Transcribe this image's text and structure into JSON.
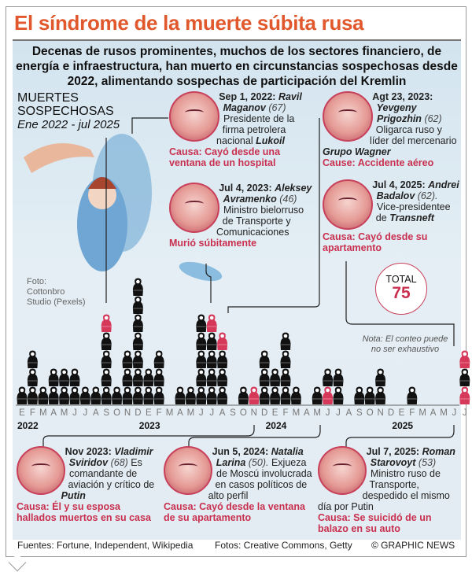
{
  "title": "El síndrome de la muerte súbita rusa",
  "intro": "Decenas de rusos prominentes, muchos de los sectores financiero, de energía e infraestructura, han muerto en circunstancias sospechosas desde 2022, alimentando sospechas de participación del Kremlin",
  "section_label": {
    "line1": "MUERTES",
    "line2": "SOSPECHOSAS",
    "range": "Ene 2022 - jul 2025"
  },
  "photo_credit": {
    "l1": "Foto:",
    "l2": "Cottonbro",
    "l3": "Studio (Pexels)"
  },
  "total": {
    "label": "TOTAL",
    "value": "75"
  },
  "note": {
    "l1": "Nota: El conteo puede",
    "l2": "no ser exhaustivo"
  },
  "profiles": [
    {
      "date": "Sep 1, 2022:",
      "name": "Ravil Maganov",
      "age": "(67)",
      "desc": "Presidente de la firma petrolera nacional",
      "org": "Lukoil",
      "cause": "Causa: Cayó desde una ventana de un hospital"
    },
    {
      "date": "Jul 4, 2023:",
      "name": "Aleksey Avramenko",
      "age": "(46)",
      "desc": "Ministro bielorruso de Transporte y Comunicaciones",
      "org": "",
      "cause": "Murió súbitamente"
    },
    {
      "date": "Agt 23, 2023:",
      "name": "Yevgeny Prigozhin",
      "age": "(62)",
      "desc": "Oligarca ruso y líder del mercenario",
      "org": "Grupo Wagner",
      "cause": "Cause: Accidente aéreo"
    },
    {
      "date": "Jul 4, 2025:",
      "name": "Andrei Badalov",
      "age": "(62).",
      "desc": "Vice-presidentee de",
      "org": "Transneft",
      "cause": "Causa: Cayó desde su apartamento"
    },
    {
      "date": "Nov 2023:",
      "name": "Vladimir Sviridov",
      "age": "(68)",
      "desc": "Es comandante de aviación y crítico de",
      "org": "Putin",
      "cause": "Causa: Él y su esposa hallados muertos en su casa"
    },
    {
      "date": "Jun 5, 2024:",
      "name": "Natalia Larina",
      "age": "(50).",
      "desc": "Exjueza de Moscú involucrada en casos políticos de alto perfil",
      "org": "",
      "cause": "Causa: Cayó desde la ventana de su apartamento"
    },
    {
      "date": "Jul 7, 2025:",
      "name": "Roman Starovoyt",
      "age": "(53)",
      "desc": "Ministro ruso de Transporte, despedido el mismo día por Putin",
      "org": "",
      "cause": "Causa: Se suicidó de un balazo en su auto"
    }
  ],
  "footer": {
    "sources": "Fuentes: Fortune, Independent, Wikipedia",
    "photos": "Fotos: Creative Commons, Getty",
    "credit": "© GRAPHIC NEWS"
  },
  "colors": {
    "title": "#e0582c",
    "highlight": "#d6385a",
    "doll": "#111111"
  },
  "chart_data": {
    "type": "pictogram-bar",
    "title": "MUERTES SOSPECHOSAS",
    "subtitle": "Ene 2022 - jul 2025",
    "month_labels": [
      "E",
      "F",
      "M",
      "A",
      "M",
      "J",
      "J",
      "A",
      "S",
      "O",
      "N",
      "D",
      "E",
      "F",
      "M",
      "A",
      "M",
      "J",
      "J",
      "A",
      "S",
      "O",
      "N",
      "D",
      "E",
      "F",
      "M",
      "A",
      "M",
      "J",
      "J",
      "A",
      "S",
      "O",
      "N",
      "D",
      "E",
      "F",
      "M",
      "A",
      "M",
      "J",
      "J"
    ],
    "year_labels": [
      {
        "label": "2022",
        "month_index": 0
      },
      {
        "label": "2023",
        "month_index": 12
      },
      {
        "label": "2024",
        "month_index": 24
      },
      {
        "label": "2025",
        "month_index": 36
      }
    ],
    "counts": [
      1,
      3,
      1,
      2,
      2,
      2,
      1,
      1,
      5,
      1,
      3,
      7,
      2,
      3,
      0,
      1,
      1,
      5,
      5,
      4,
      0,
      1,
      1,
      3,
      2,
      4,
      1,
      0,
      1,
      2,
      2,
      0,
      1,
      1,
      2,
      0,
      0,
      1,
      0,
      0,
      0,
      0,
      3
    ],
    "highlighted": [
      {
        "month_index": 8,
        "positions": [
          5
        ]
      },
      {
        "month_index": 18,
        "positions": [
          5
        ]
      },
      {
        "month_index": 19,
        "positions": [
          4
        ]
      },
      {
        "month_index": 22,
        "positions": [
          1
        ]
      },
      {
        "month_index": 29,
        "positions": [
          1
        ]
      },
      {
        "month_index": 42,
        "positions": [
          1,
          3
        ]
      }
    ],
    "total": 75
  }
}
